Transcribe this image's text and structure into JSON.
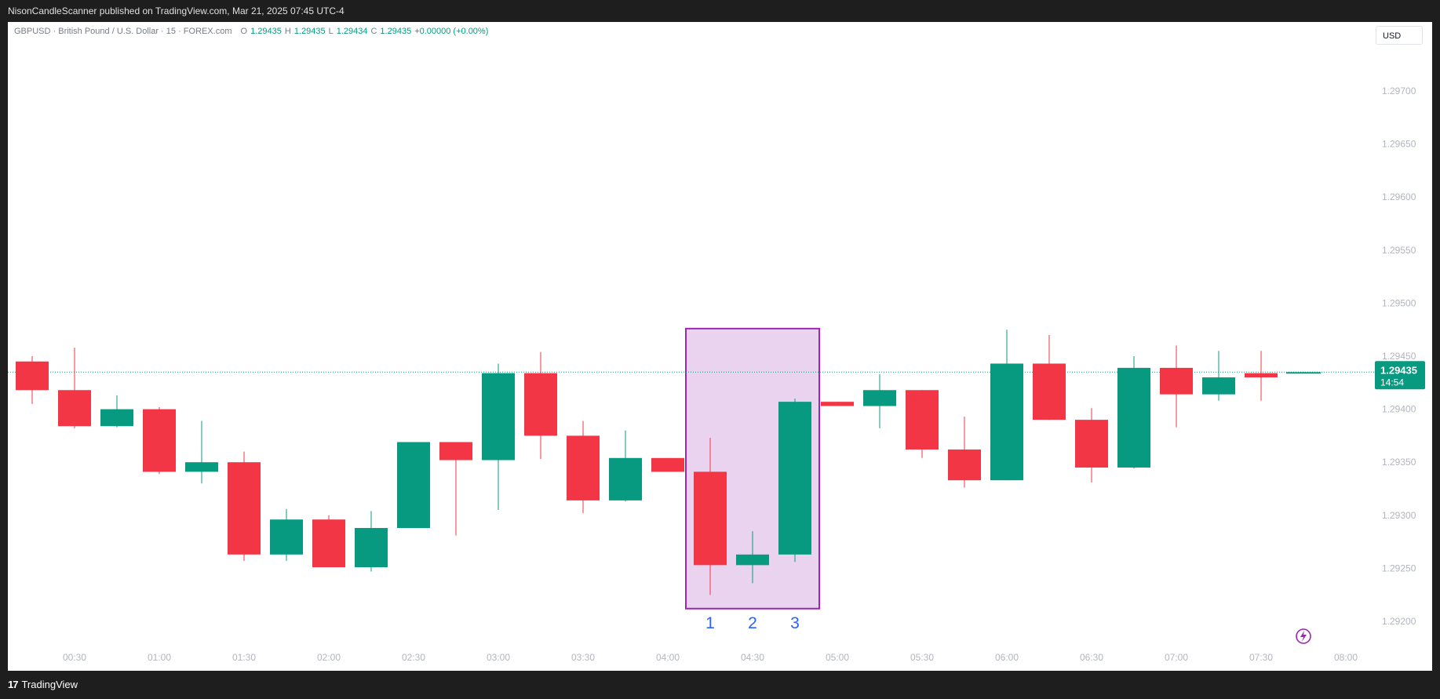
{
  "header": {
    "published_text": "NisonCandleScanner published on TradingView.com, Mar 21, 2025 07:45 UTC-4"
  },
  "legend": {
    "symbol_text": "GBPUSD · British Pound / U.S. Dollar · 15 · FOREX.com",
    "o_label": "O",
    "o_value": "1.29435",
    "h_label": "H",
    "h_value": "1.29435",
    "l_label": "L",
    "l_value": "1.29434",
    "c_label": "C",
    "c_value": "1.29435",
    "change_text": "+0.00000 (+0.00%)"
  },
  "currency_button": {
    "label": "USD"
  },
  "footer": {
    "brand": "TradingView",
    "logo_mark": "17"
  },
  "colors": {
    "up": "#089981",
    "down": "#f23645",
    "highlight_fill": "#e9d3ee",
    "highlight_border": "#9c27b0",
    "pattern_label": "#2962ff",
    "price_line": "#089981"
  },
  "chart_data": {
    "type": "candlestick",
    "title": "",
    "xlabel": "",
    "ylabel": "",
    "ylim": [
      1.2919,
      1.29745
    ],
    "grid": false,
    "y_ticks": [
      "1.29200",
      "1.29250",
      "1.29300",
      "1.29350",
      "1.29400",
      "1.29450",
      "1.29500",
      "1.29550",
      "1.29600",
      "1.29650",
      "1.29700"
    ],
    "x_ticks": [
      "00:30",
      "01:00",
      "01:30",
      "02:00",
      "02:30",
      "03:00",
      "03:30",
      "04:00",
      "04:30",
      "05:00",
      "05:30",
      "06:00",
      "06:30",
      "07:00",
      "07:30",
      "08:00"
    ],
    "candles": [
      {
        "time": "00:15",
        "open": 1.29445,
        "high": 1.2945,
        "low": 1.29405,
        "close": 1.29418
      },
      {
        "time": "00:30",
        "open": 1.29418,
        "high": 1.29458,
        "low": 1.29382,
        "close": 1.29384
      },
      {
        "time": "00:45",
        "open": 1.29384,
        "high": 1.29413,
        "low": 1.29383,
        "close": 1.294
      },
      {
        "time": "01:00",
        "open": 1.294,
        "high": 1.29402,
        "low": 1.29339,
        "close": 1.29341
      },
      {
        "time": "01:15",
        "open": 1.29341,
        "high": 1.29389,
        "low": 1.2933,
        "close": 1.2935
      },
      {
        "time": "01:30",
        "open": 1.2935,
        "high": 1.2936,
        "low": 1.29257,
        "close": 1.29263
      },
      {
        "time": "01:45",
        "open": 1.29263,
        "high": 1.29306,
        "low": 1.29257,
        "close": 1.29296
      },
      {
        "time": "02:00",
        "open": 1.29296,
        "high": 1.293,
        "low": 1.29251,
        "close": 1.29251
      },
      {
        "time": "02:15",
        "open": 1.29251,
        "high": 1.29304,
        "low": 1.29247,
        "close": 1.29288
      },
      {
        "time": "02:30",
        "open": 1.29288,
        "high": 1.29369,
        "low": 1.29288,
        "close": 1.29369
      },
      {
        "time": "02:45",
        "open": 1.29369,
        "high": 1.29369,
        "low": 1.29281,
        "close": 1.29352
      },
      {
        "time": "03:00",
        "open": 1.29352,
        "high": 1.29443,
        "low": 1.29305,
        "close": 1.29434
      },
      {
        "time": "03:15",
        "open": 1.29434,
        "high": 1.29454,
        "low": 1.29353,
        "close": 1.29375
      },
      {
        "time": "03:30",
        "open": 1.29375,
        "high": 1.29389,
        "low": 1.29302,
        "close": 1.29314
      },
      {
        "time": "03:45",
        "open": 1.29314,
        "high": 1.2938,
        "low": 1.29313,
        "close": 1.29354
      },
      {
        "time": "04:00",
        "open": 1.29354,
        "high": 1.29354,
        "low": 1.29341,
        "close": 1.29341
      },
      {
        "time": "04:15",
        "open": 1.29341,
        "high": 1.29373,
        "low": 1.29225,
        "close": 1.29253
      },
      {
        "time": "04:30",
        "open": 1.29253,
        "high": 1.29285,
        "low": 1.29236,
        "close": 1.29263
      },
      {
        "time": "04:45",
        "open": 1.29263,
        "high": 1.2941,
        "low": 1.29256,
        "close": 1.29407
      },
      {
        "time": "05:00",
        "open": 1.29407,
        "high": 1.29407,
        "low": 1.29403,
        "close": 1.29403
      },
      {
        "time": "05:15",
        "open": 1.29403,
        "high": 1.29433,
        "low": 1.29382,
        "close": 1.29418
      },
      {
        "time": "05:30",
        "open": 1.29418,
        "high": 1.29418,
        "low": 1.29354,
        "close": 1.29362
      },
      {
        "time": "05:45",
        "open": 1.29362,
        "high": 1.29393,
        "low": 1.29326,
        "close": 1.29333
      },
      {
        "time": "06:00",
        "open": 1.29333,
        "high": 1.29475,
        "low": 1.29333,
        "close": 1.29443
      },
      {
        "time": "06:15",
        "open": 1.29443,
        "high": 1.2947,
        "low": 1.2939,
        "close": 1.2939
      },
      {
        "time": "06:30",
        "open": 1.2939,
        "high": 1.29401,
        "low": 1.29331,
        "close": 1.29345
      },
      {
        "time": "06:45",
        "open": 1.29345,
        "high": 1.2945,
        "low": 1.29344,
        "close": 1.29439
      },
      {
        "time": "07:00",
        "open": 1.29439,
        "high": 1.2946,
        "low": 1.29383,
        "close": 1.29414
      },
      {
        "time": "07:15",
        "open": 1.29414,
        "high": 1.29455,
        "low": 1.29408,
        "close": 1.2943
      },
      {
        "time": "07:30",
        "open": 1.29434,
        "high": 1.29455,
        "low": 1.29408,
        "close": 1.2943
      },
      {
        "time": "07:45",
        "open": 1.29435,
        "high": 1.29435,
        "low": 1.29434,
        "close": 1.29435
      }
    ],
    "last_price": {
      "value": 1.29435,
      "label": "1.29435",
      "countdown": "14:54"
    },
    "annotation": {
      "type": "highlight-box",
      "from": "04:15",
      "to": "04:45",
      "low": 1.29212,
      "high": 1.29476,
      "labels": [
        "1",
        "2",
        "3"
      ]
    }
  }
}
